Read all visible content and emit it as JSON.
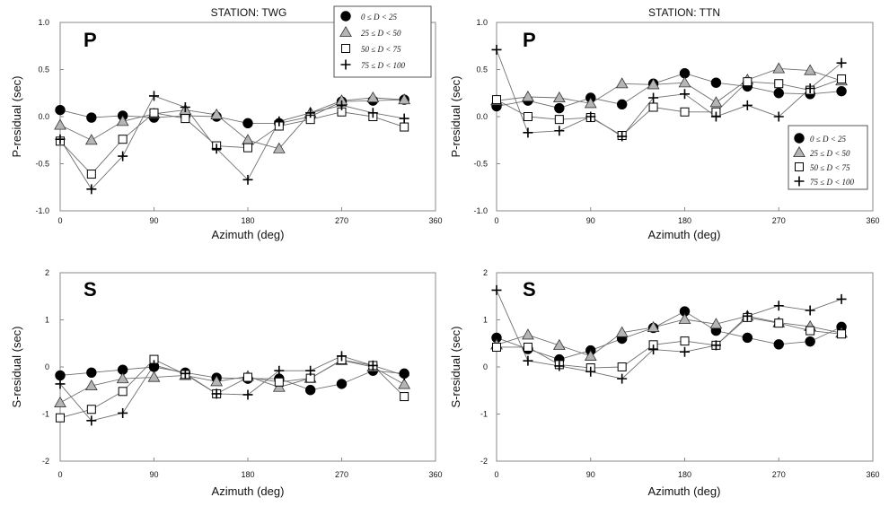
{
  "chart_data": [
    {
      "type": "scatter",
      "id": "twg_p",
      "title": "STATION:  TWG",
      "phase_label": "P",
      "xlabel": "Azimuth  (deg)",
      "ylabel": "P-residual  (sec)",
      "xlim": [
        0,
        360
      ],
      "ylim": [
        -1.0,
        1.0
      ],
      "xticks": [
        "0",
        "90",
        "180",
        "270",
        "360"
      ],
      "yticks": [
        "-1.0",
        "-0.5",
        "0.0",
        "0.5",
        "1.0"
      ],
      "legend_position": "top-right",
      "series": [
        {
          "name": "0 ≤ D < 25",
          "marker": "circle",
          "x": [
            0,
            30,
            60,
            90,
            120,
            150,
            180,
            210,
            240,
            270,
            300,
            330
          ],
          "y": [
            0.07,
            -0.01,
            0.01,
            -0.01,
            0.01,
            0.0,
            -0.07,
            -0.07,
            0.0,
            0.16,
            0.17,
            0.18
          ]
        },
        {
          "name": "25 ≤ D < 50",
          "marker": "triangle",
          "x": [
            0,
            30,
            60,
            90,
            120,
            150,
            180,
            210,
            240,
            270,
            300,
            330
          ],
          "y": [
            -0.09,
            -0.25,
            -0.05,
            0.03,
            0.07,
            0.02,
            -0.25,
            -0.34,
            0.04,
            0.17,
            0.2,
            0.18
          ]
        },
        {
          "name": "50 ≤ D < 75",
          "marker": "square",
          "x": [
            0,
            30,
            60,
            90,
            120,
            150,
            180,
            210,
            240,
            270,
            300,
            330
          ],
          "y": [
            -0.26,
            -0.61,
            -0.24,
            0.04,
            -0.02,
            -0.31,
            -0.33,
            -0.1,
            -0.03,
            0.05,
            0.0,
            -0.11
          ]
        },
        {
          "name": "75 ≤ D < 100",
          "marker": "plus",
          "x": [
            0,
            30,
            60,
            90,
            120,
            150,
            180,
            210,
            240,
            270,
            300,
            330
          ],
          "y": [
            -0.24,
            -0.77,
            -0.42,
            0.22,
            0.1,
            -0.34,
            -0.67,
            -0.05,
            0.04,
            0.12,
            0.04,
            -0.02
          ]
        }
      ]
    },
    {
      "type": "scatter",
      "id": "ttn_p",
      "title": "STATION:  TTN",
      "phase_label": "P",
      "xlabel": "Azimuth  (deg)",
      "ylabel": "P-residual  (sec)",
      "xlim": [
        0,
        360
      ],
      "ylim": [
        -1.0,
        1.0
      ],
      "xticks": [
        "0",
        "90",
        "180",
        "270",
        "360"
      ],
      "yticks": [
        "-1.0",
        "-0.5",
        "0.0",
        "0.5",
        "1.0"
      ],
      "legend_position": "right",
      "series": [
        {
          "name": "0 ≤ D < 25",
          "marker": "circle",
          "x": [
            0,
            30,
            60,
            90,
            120,
            150,
            180,
            210,
            240,
            270,
            300,
            330
          ],
          "y": [
            0.11,
            0.17,
            0.09,
            0.2,
            0.13,
            0.35,
            0.46,
            0.36,
            0.32,
            0.25,
            0.24,
            0.27
          ]
        },
        {
          "name": "25 ≤ D < 50",
          "marker": "triangle",
          "x": [
            0,
            30,
            60,
            90,
            120,
            150,
            180,
            210,
            240,
            270,
            300,
            330
          ],
          "y": [
            0.17,
            0.21,
            0.2,
            0.14,
            0.35,
            0.34,
            0.36,
            0.15,
            0.39,
            0.51,
            0.49,
            0.38
          ]
        },
        {
          "name": "50 ≤ D < 75",
          "marker": "square",
          "x": [
            0,
            30,
            60,
            90,
            120,
            150,
            180,
            210,
            240,
            270,
            300,
            330
          ],
          "y": [
            0.18,
            0.0,
            -0.03,
            -0.01,
            -0.2,
            0.1,
            0.05,
            0.05,
            0.37,
            0.35,
            0.28,
            0.4
          ]
        },
        {
          "name": "75 ≤ D < 100",
          "marker": "plus",
          "x": [
            0,
            30,
            60,
            90,
            120,
            150,
            180,
            210,
            240,
            270,
            300,
            330
          ],
          "y": [
            0.71,
            -0.17,
            -0.15,
            0.0,
            -0.21,
            0.2,
            0.24,
            0.0,
            0.12,
            0.0,
            0.3,
            0.57
          ]
        }
      ]
    },
    {
      "type": "scatter",
      "id": "twg_s",
      "phase_label": "S",
      "xlabel": "Azimuth  (deg)",
      "ylabel": "S-residual  (sec)",
      "xlim": [
        0,
        360
      ],
      "ylim": [
        -2,
        2
      ],
      "xticks": [
        "0",
        "90",
        "180",
        "270",
        "360"
      ],
      "yticks": [
        "-2",
        "-1",
        "0",
        "1",
        "2"
      ],
      "series": [
        {
          "name": "0 ≤ D < 25",
          "marker": "circle",
          "x": [
            0,
            30,
            60,
            90,
            120,
            150,
            180,
            210,
            240,
            270,
            300,
            330
          ],
          "y": [
            -0.18,
            -0.12,
            -0.06,
            0.0,
            -0.12,
            -0.23,
            -0.25,
            -0.25,
            -0.49,
            -0.36,
            -0.08,
            -0.14
          ]
        },
        {
          "name": "25 ≤ D < 50",
          "marker": "triangle",
          "x": [
            0,
            30,
            60,
            90,
            120,
            150,
            180,
            210,
            240,
            270,
            300,
            330
          ],
          "y": [
            -0.76,
            -0.4,
            -0.25,
            -0.22,
            -0.18,
            -0.31,
            -0.2,
            -0.43,
            -0.24,
            0.14,
            0.0,
            -0.37
          ]
        },
        {
          "name": "50 ≤ D < 75",
          "marker": "square",
          "x": [
            0,
            30,
            60,
            90,
            120,
            150,
            180,
            210,
            240,
            270,
            300,
            330
          ],
          "y": [
            -1.08,
            -0.9,
            -0.52,
            0.16,
            -0.16,
            -0.57,
            -0.22,
            -0.32,
            -0.24,
            0.15,
            0.03,
            -0.63
          ]
        },
        {
          "name": "75 ≤ D < 100",
          "marker": "plus",
          "x": [
            0,
            30,
            60,
            90,
            120,
            150,
            180,
            210,
            240,
            270,
            300,
            330
          ],
          "y": [
            -0.36,
            -1.14,
            -0.98,
            0.04,
            -0.14,
            -0.57,
            -0.59,
            -0.08,
            -0.08,
            0.23,
            0.03,
            -0.18
          ]
        }
      ]
    },
    {
      "type": "scatter",
      "id": "ttn_s",
      "phase_label": "S",
      "xlabel": "Azimuth  (deg)",
      "ylabel": "S-residual  (sec)",
      "xlim": [
        0,
        360
      ],
      "ylim": [
        -2,
        2
      ],
      "xticks": [
        "0",
        "90",
        "180",
        "270",
        "360"
      ],
      "yticks": [
        "-2",
        "-1",
        "0",
        "1",
        "2"
      ],
      "series": [
        {
          "name": "0 ≤ D < 25",
          "marker": "circle",
          "x": [
            0,
            30,
            60,
            90,
            120,
            150,
            180,
            210,
            240,
            270,
            300,
            330
          ],
          "y": [
            0.62,
            0.38,
            0.16,
            0.35,
            0.6,
            0.83,
            1.18,
            0.77,
            0.62,
            0.48,
            0.54,
            0.85
          ]
        },
        {
          "name": "25 ≤ D < 50",
          "marker": "triangle",
          "x": [
            0,
            30,
            60,
            90,
            120,
            150,
            180,
            210,
            240,
            270,
            300,
            330
          ],
          "y": [
            0.47,
            0.68,
            0.46,
            0.23,
            0.73,
            0.84,
            1.01,
            0.91,
            1.08,
            0.94,
            0.86,
            0.72
          ]
        },
        {
          "name": "50 ≤ D < 75",
          "marker": "square",
          "x": [
            0,
            30,
            60,
            90,
            120,
            150,
            180,
            210,
            240,
            270,
            300,
            330
          ],
          "y": [
            0.42,
            0.42,
            0.05,
            -0.02,
            0.0,
            0.47,
            0.55,
            0.46,
            1.05,
            0.93,
            0.77,
            0.7
          ]
        },
        {
          "name": "75 ≤ D < 100",
          "marker": "plus",
          "x": [
            0,
            30,
            60,
            90,
            120,
            150,
            180,
            210,
            240,
            270,
            300,
            330
          ],
          "y": [
            1.63,
            0.13,
            0.02,
            -0.1,
            -0.25,
            0.37,
            0.32,
            0.46,
            1.08,
            1.3,
            1.2,
            1.44
          ]
        }
      ]
    }
  ]
}
